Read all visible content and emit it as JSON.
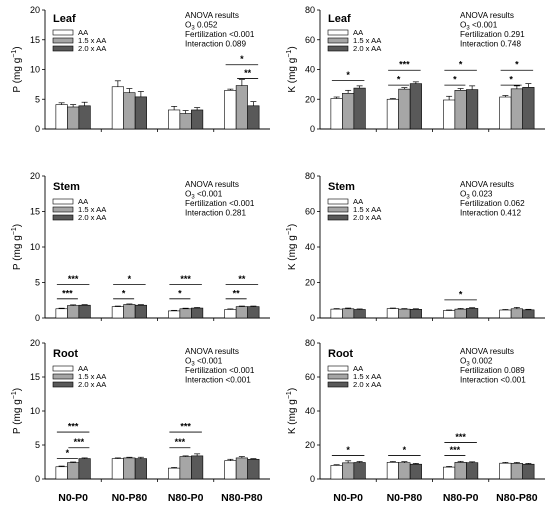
{
  "figure": {
    "colors": {
      "s1": "#ffffff",
      "s2": "#a6a6a6",
      "s3": "#595959",
      "edge": "#000000"
    },
    "series_names": [
      "AA",
      "1.5 x AA",
      "2.0 x AA"
    ],
    "categories": [
      "N0-P0",
      "N0-P80",
      "N80-P0",
      "N80-P80"
    ],
    "anova_title": "ANOVA results"
  },
  "chart_data": [
    {
      "type": "bar",
      "panel_label": "Leaf",
      "ylabel_main": "P (mg g",
      "ylabel_sup": "−1",
      "ylabel_end": ")",
      "ylim": [
        0,
        20
      ],
      "yticks": [
        "0",
        "5",
        "10",
        "15",
        "20"
      ],
      "categories": [
        "N0-P0",
        "N0-P80",
        "N80-P0",
        "N80-P80"
      ],
      "series": [
        {
          "name": "AA",
          "values": [
            4.1,
            7.1,
            3.2,
            6.5
          ],
          "err": [
            0.3,
            1.0,
            0.6,
            0.2
          ]
        },
        {
          "name": "1.5 x AA",
          "values": [
            3.7,
            6.1,
            2.6,
            7.3
          ],
          "err": [
            0.4,
            0.7,
            0.5,
            1.0
          ]
        },
        {
          "name": "2.0 x AA",
          "values": [
            3.9,
            5.4,
            3.2,
            3.9
          ],
          "err": [
            0.6,
            0.9,
            0.4,
            0.7
          ]
        }
      ],
      "anova": [
        {
          "sym": "O",
          "sub": "3",
          "text": " 0.052"
        },
        {
          "text": "Fertilization <0.001"
        },
        {
          "text": "Interaction 0.089"
        }
      ],
      "significance": [
        {
          "cat": 3,
          "from": 0,
          "to": 2,
          "y": 10.8,
          "text": "*"
        },
        {
          "cat": 3,
          "from": 1,
          "to": 2,
          "y": 8.5,
          "text": "**"
        }
      ]
    },
    {
      "type": "bar",
      "panel_label": "Leaf",
      "ylabel_main": "K (mg g",
      "ylabel_sup": "−1",
      "ylabel_end": ")",
      "ylim": [
        0,
        80
      ],
      "yticks": [
        "0",
        "20",
        "40",
        "60",
        "80"
      ],
      "categories": [
        "N0-P0",
        "N0-P80",
        "N80-P0",
        "N80-P80"
      ],
      "series": [
        {
          "name": "AA",
          "values": [
            20.5,
            20.0,
            19.5,
            21.5
          ],
          "err": [
            1.0,
            0.5,
            2.5,
            1.0
          ]
        },
        {
          "name": "1.5 x AA",
          "values": [
            24.0,
            26.8,
            26.0,
            27.0
          ],
          "err": [
            2.0,
            1.0,
            1.2,
            2.0
          ]
        },
        {
          "name": "2.0 x AA",
          "values": [
            27.5,
            30.5,
            26.5,
            28.0
          ],
          "err": [
            1.5,
            1.2,
            2.5,
            2.5
          ]
        }
      ],
      "anova": [
        {
          "sym": "O",
          "sub": "3",
          "text": " <0.001"
        },
        {
          "text": "Fertilization 0.291"
        },
        {
          "text": "Interaction 0.748"
        }
      ],
      "significance": [
        {
          "cat": 0,
          "from": 0,
          "to": 2,
          "y": 32.5,
          "text": "*"
        },
        {
          "cat": 1,
          "from": 0,
          "to": 2,
          "y": 39.5,
          "text": "***"
        },
        {
          "cat": 1,
          "from": 0,
          "to": 1,
          "y": 29.5,
          "text": "*"
        },
        {
          "cat": 2,
          "from": 0,
          "to": 2,
          "y": 39.5,
          "text": "*"
        },
        {
          "cat": 2,
          "from": 0,
          "to": 1,
          "y": 29.5,
          "text": "*"
        },
        {
          "cat": 3,
          "from": 0,
          "to": 2,
          "y": 39.5,
          "text": "*"
        },
        {
          "cat": 3,
          "from": 0,
          "to": 1,
          "y": 29.5,
          "text": "*"
        }
      ]
    },
    {
      "type": "bar",
      "panel_label": "Stem",
      "ylabel_main": "P (mg g",
      "ylabel_sup": "−1",
      "ylabel_end": ")",
      "ylim": [
        0,
        20
      ],
      "yticks": [
        "0",
        "5",
        "10",
        "15",
        "20"
      ],
      "categories": [
        "N0-P0",
        "N0-P80",
        "N80-P0",
        "N80-P80"
      ],
      "series": [
        {
          "name": "AA",
          "values": [
            1.3,
            1.6,
            1.0,
            1.2
          ],
          "err": [
            0.08,
            0.08,
            0.08,
            0.08
          ]
        },
        {
          "name": "1.5 x AA",
          "values": [
            1.75,
            1.9,
            1.3,
            1.6
          ],
          "err": [
            0.1,
            0.08,
            0.08,
            0.08
          ]
        },
        {
          "name": "2.0 x AA",
          "values": [
            1.8,
            1.8,
            1.4,
            1.6
          ],
          "err": [
            0.08,
            0.08,
            0.08,
            0.08
          ]
        }
      ],
      "anova": [
        {
          "sym": "O",
          "sub": "3",
          "text": " <0.001"
        },
        {
          "text": "Fertilization <0.001"
        },
        {
          "text": "Interaction 0.281"
        }
      ],
      "significance": [
        {
          "cat": 0,
          "from": 0,
          "to": 2,
          "y": 4.7,
          "text": "***"
        },
        {
          "cat": 0,
          "from": 0,
          "to": 1,
          "y": 2.7,
          "text": "***"
        },
        {
          "cat": 1,
          "from": 0,
          "to": 2,
          "y": 4.7,
          "text": "*"
        },
        {
          "cat": 1,
          "from": 0,
          "to": 1,
          "y": 2.7,
          "text": "*"
        },
        {
          "cat": 2,
          "from": 0,
          "to": 2,
          "y": 4.7,
          "text": "***"
        },
        {
          "cat": 2,
          "from": 0,
          "to": 1,
          "y": 2.7,
          "text": "*"
        },
        {
          "cat": 3,
          "from": 0,
          "to": 2,
          "y": 4.7,
          "text": "**"
        },
        {
          "cat": 3,
          "from": 0,
          "to": 1,
          "y": 2.7,
          "text": "**"
        }
      ]
    },
    {
      "type": "bar",
      "panel_label": "Stem",
      "ylabel_main": "K (mg g",
      "ylabel_sup": "−1",
      "ylabel_end": ")",
      "ylim": [
        0,
        80
      ],
      "yticks": [
        "0",
        "20",
        "40",
        "60",
        "80"
      ],
      "categories": [
        "N0-P0",
        "N0-P80",
        "N80-P0",
        "N80-P80"
      ],
      "series": [
        {
          "name": "AA",
          "values": [
            5.0,
            5.3,
            4.2,
            4.5
          ],
          "err": [
            0.3,
            0.3,
            0.3,
            0.3
          ]
        },
        {
          "name": "1.5 x AA",
          "values": [
            5.2,
            5.0,
            5.0,
            5.2
          ],
          "err": [
            0.4,
            0.3,
            0.4,
            0.8
          ]
        },
        {
          "name": "2.0 x AA",
          "values": [
            4.8,
            4.9,
            5.4,
            4.6
          ],
          "err": [
            0.3,
            0.3,
            0.4,
            0.3
          ]
        }
      ],
      "anova": [
        {
          "sym": "O",
          "sub": "3",
          "text": " 0.023"
        },
        {
          "text": "Fertilization 0.062"
        },
        {
          "text": "Interaction 0.412"
        }
      ],
      "significance": [
        {
          "cat": 2,
          "from": 0,
          "to": 2,
          "y": 10.2,
          "text": "*"
        }
      ]
    },
    {
      "type": "bar",
      "panel_label": "Root",
      "ylabel_main": "P (mg g",
      "ylabel_sup": "−1",
      "ylabel_end": ")",
      "ylim": [
        0,
        20
      ],
      "yticks": [
        "0",
        "5",
        "10",
        "15",
        "20"
      ],
      "categories": [
        "N0-P0",
        "N0-P80",
        "N80-P0",
        "N80-P80"
      ],
      "series": [
        {
          "name": "AA",
          "values": [
            1.8,
            3.0,
            1.6,
            2.7
          ],
          "err": [
            0.1,
            0.1,
            0.1,
            0.2
          ]
        },
        {
          "name": "1.5 x AA",
          "values": [
            2.4,
            3.1,
            3.3,
            3.1
          ],
          "err": [
            0.1,
            0.1,
            0.1,
            0.2
          ]
        },
        {
          "name": "2.0 x AA",
          "values": [
            3.0,
            3.0,
            3.4,
            2.9
          ],
          "err": [
            0.1,
            0.2,
            0.3,
            0.1
          ]
        }
      ],
      "anova": [
        {
          "sym": "O",
          "sub": "3",
          "text": " <0.001"
        },
        {
          "text": "Fertilization <0.001"
        },
        {
          "text": "Interaction <0.001"
        }
      ],
      "significance": [
        {
          "cat": 0,
          "from": 0,
          "to": 2,
          "y": 6.9,
          "text": "***"
        },
        {
          "cat": 0,
          "from": 1,
          "to": 2,
          "y": 4.6,
          "text": "***"
        },
        {
          "cat": 0,
          "from": 0,
          "to": 1,
          "y": 3.0,
          "text": "*"
        },
        {
          "cat": 2,
          "from": 0,
          "to": 2,
          "y": 6.9,
          "text": "***"
        },
        {
          "cat": 2,
          "from": 0,
          "to": 1,
          "y": 4.6,
          "text": "***"
        }
      ]
    },
    {
      "type": "bar",
      "panel_label": "Root",
      "ylabel_main": "K (mg g",
      "ylabel_sup": "−1",
      "ylabel_end": ")",
      "ylim": [
        0,
        80
      ],
      "yticks": [
        "0",
        "20",
        "40",
        "60",
        "80"
      ],
      "categories": [
        "N0-P0",
        "N0-P80",
        "N80-P0",
        "N80-P80"
      ],
      "series": [
        {
          "name": "AA",
          "values": [
            8.0,
            9.8,
            7.0,
            9.3
          ],
          "err": [
            0.4,
            0.5,
            0.4,
            0.5
          ]
        },
        {
          "name": "1.5 x AA",
          "values": [
            9.5,
            9.6,
            9.8,
            9.2
          ],
          "err": [
            1.2,
            0.6,
            0.6,
            0.6
          ]
        },
        {
          "name": "2.0 x AA",
          "values": [
            9.7,
            8.7,
            9.6,
            8.7
          ],
          "err": [
            0.6,
            0.5,
            0.5,
            0.5
          ]
        }
      ],
      "anova": [
        {
          "sym": "O",
          "sub": "3",
          "text": " 0.002"
        },
        {
          "text": "Fertilization 0.089"
        },
        {
          "text": "Interaction <0.001"
        }
      ],
      "significance": [
        {
          "cat": 0,
          "from": 0,
          "to": 2,
          "y": 13.8,
          "text": "*"
        },
        {
          "cat": 1,
          "from": 0,
          "to": 2,
          "y": 13.8,
          "text": "*"
        },
        {
          "cat": 2,
          "from": 0,
          "to": 2,
          "y": 21.5,
          "text": "***"
        },
        {
          "cat": 2,
          "from": 0,
          "to": 1,
          "y": 13.8,
          "text": "***"
        }
      ]
    }
  ]
}
